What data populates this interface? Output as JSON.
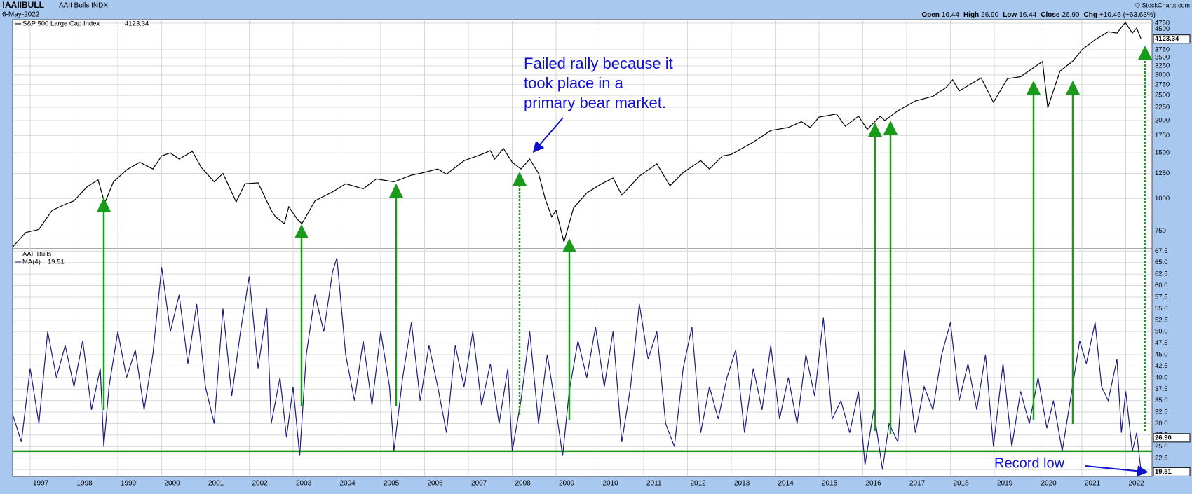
{
  "header": {
    "symbol": "!AAIIBULL",
    "name": "AAII Bulls INDX",
    "date": "6-May-2022",
    "credit": "© StockCharts.com",
    "quote": [
      {
        "label": "Open",
        "value": "16.44"
      },
      {
        "label": "High",
        "value": "26.90"
      },
      {
        "label": "Low",
        "value": "16.44"
      },
      {
        "label": "Close",
        "value": "26.90"
      },
      {
        "label": "Chg",
        "value": "+10.46 (+63.63%)"
      }
    ]
  },
  "chart_data": [
    {
      "type": "line",
      "log_scale": true,
      "grid": true,
      "series": [
        {
          "name": "S&P 500 Large Cap Index",
          "color": "#000000",
          "x": [
            1996.6,
            1996.9,
            1997.2,
            1997.5,
            1997.8,
            1998.0,
            1998.3,
            1998.55,
            1998.7,
            1998.9,
            1999.2,
            1999.5,
            1999.8,
            2000.0,
            2000.2,
            2000.4,
            2000.7,
            2000.9,
            2001.2,
            2001.4,
            2001.7,
            2001.9,
            2002.2,
            2002.5,
            2002.6,
            2002.8,
            2002.9,
            2003.1,
            2003.2,
            2003.5,
            2003.9,
            2004.2,
            2004.6,
            2004.9,
            2005.3,
            2005.7,
            2005.9,
            2006.3,
            2006.5,
            2006.9,
            2007.3,
            2007.5,
            2007.6,
            2007.8,
            2008.0,
            2008.2,
            2008.4,
            2008.6,
            2008.75,
            2008.9,
            2009.0,
            2009.18,
            2009.4,
            2009.7,
            2010.0,
            2010.3,
            2010.5,
            2010.9,
            2011.3,
            2011.6,
            2011.9,
            2012.3,
            2012.5,
            2012.8,
            2013.0,
            2013.5,
            2013.9,
            2014.3,
            2014.6,
            2014.8,
            2015.0,
            2015.4,
            2015.6,
            2015.9,
            2016.1,
            2016.4,
            2016.5,
            2016.8,
            2017.2,
            2017.6,
            2017.9,
            2018.05,
            2018.2,
            2018.7,
            2018.98,
            2019.3,
            2019.6,
            2019.9,
            2020.1,
            2020.22,
            2020.5,
            2020.8,
            2021.0,
            2021.3,
            2021.6,
            2021.8,
            2021.99,
            2022.15,
            2022.25,
            2022.35
          ],
          "values": [
            650,
            740,
            760,
            900,
            950,
            980,
            1110,
            1180,
            960,
            1160,
            1290,
            1380,
            1300,
            1460,
            1500,
            1420,
            1520,
            1320,
            1160,
            1250,
            970,
            1140,
            1150,
            900,
            850,
            800,
            930,
            830,
            800,
            980,
            1060,
            1140,
            1090,
            1190,
            1160,
            1230,
            1250,
            1300,
            1240,
            1400,
            1480,
            1530,
            1420,
            1560,
            1380,
            1300,
            1420,
            1250,
            1000,
            850,
            900,
            680,
            920,
            1050,
            1130,
            1200,
            1030,
            1220,
            1360,
            1120,
            1260,
            1400,
            1300,
            1460,
            1480,
            1650,
            1830,
            1880,
            1980,
            1880,
            2060,
            2120,
            1900,
            2080,
            1850,
            2080,
            2000,
            2180,
            2380,
            2480,
            2680,
            2870,
            2600,
            2920,
            2350,
            2900,
            2950,
            3200,
            3380,
            2240,
            3100,
            3400,
            3750,
            4100,
            4400,
            4350,
            4780,
            4350,
            4550,
            4123.34
          ]
        }
      ],
      "xlim": [
        1996.6,
        2022.6
      ],
      "ylim": [
        640,
        4900
      ],
      "yticks": [
        750,
        1000,
        1250,
        1500,
        1750,
        2000,
        2250,
        2500,
        2750,
        3000,
        3250,
        3500,
        3750,
        4500,
        4750
      ],
      "annotation": [
        "Failed rally because it",
        "took place in a",
        "primary bear market."
      ]
    },
    {
      "type": "line",
      "title": "AAII Bulls",
      "grid": true,
      "series": [
        {
          "name": "MA(4)",
          "color": "#1c1c80",
          "x": [
            1996.6,
            1996.8,
            1997.0,
            1997.2,
            1997.4,
            1997.6,
            1997.8,
            1998.0,
            1998.2,
            1998.4,
            1998.6,
            1998.68,
            1998.8,
            1999.0,
            1999.2,
            1999.4,
            1999.6,
            1999.8,
            2000.0,
            2000.2,
            2000.4,
            2000.6,
            2000.8,
            2001.0,
            2001.2,
            2001.4,
            2001.6,
            2001.8,
            2002.0,
            2002.2,
            2002.4,
            2002.5,
            2002.7,
            2002.85,
            2003.0,
            2003.15,
            2003.3,
            2003.5,
            2003.7,
            2003.9,
            2004.0,
            2004.2,
            2004.4,
            2004.6,
            2004.8,
            2005.0,
            2005.2,
            2005.3,
            2005.5,
            2005.7,
            2005.9,
            2006.1,
            2006.3,
            2006.5,
            2006.7,
            2006.9,
            2007.1,
            2007.3,
            2007.5,
            2007.7,
            2007.9,
            2008.0,
            2008.2,
            2008.4,
            2008.6,
            2008.8,
            2009.0,
            2009.15,
            2009.3,
            2009.5,
            2009.7,
            2009.9,
            2010.1,
            2010.3,
            2010.5,
            2010.7,
            2010.9,
            2011.1,
            2011.3,
            2011.5,
            2011.7,
            2011.9,
            2012.1,
            2012.3,
            2012.5,
            2012.7,
            2012.9,
            2013.1,
            2013.3,
            2013.5,
            2013.7,
            2013.9,
            2014.1,
            2014.3,
            2014.5,
            2014.7,
            2014.9,
            2015.1,
            2015.3,
            2015.5,
            2015.7,
            2015.9,
            2016.05,
            2016.25,
            2016.45,
            2016.6,
            2016.8,
            2016.95,
            2017.2,
            2017.4,
            2017.6,
            2017.8,
            2018.0,
            2018.2,
            2018.4,
            2018.6,
            2018.8,
            2018.98,
            2019.2,
            2019.4,
            2019.6,
            2019.8,
            2020.0,
            2020.2,
            2020.35,
            2020.55,
            2020.75,
            2020.95,
            2021.1,
            2021.3,
            2021.45,
            2021.6,
            2021.8,
            2021.9,
            2022.0,
            2022.15,
            2022.25,
            2022.35
          ],
          "values": [
            32,
            26,
            42,
            30,
            50,
            40,
            47,
            38,
            48,
            33,
            42,
            25,
            38,
            50,
            40,
            46,
            33,
            45,
            64,
            50,
            58,
            43,
            56,
            38,
            30,
            55,
            36,
            50,
            62,
            42,
            55,
            30,
            40,
            27,
            38,
            23,
            45,
            58,
            50,
            63,
            66,
            45,
            35,
            48,
            34,
            50,
            38,
            24,
            40,
            52,
            35,
            47,
            38,
            28,
            47,
            38,
            50,
            34,
            43,
            30,
            42,
            24,
            35,
            50,
            30,
            45,
            33,
            23,
            37,
            48,
            40,
            51,
            38,
            50,
            26,
            38,
            56,
            44,
            50,
            30,
            25,
            42,
            51,
            28,
            38,
            31,
            40,
            46,
            28,
            42,
            33,
            47,
            31,
            40,
            30,
            45,
            36,
            53,
            31,
            35,
            28,
            37,
            21,
            33,
            20,
            30,
            26,
            46,
            28,
            38,
            33,
            45,
            52,
            35,
            43,
            33,
            45,
            25,
            43,
            25,
            37,
            30,
            40,
            29,
            35,
            24,
            36,
            48,
            43,
            52,
            38,
            35,
            44,
            28,
            37,
            24,
            28,
            19.51
          ]
        }
      ],
      "close": {
        "value": 26.9,
        "label": "26.90"
      },
      "hline": {
        "value": 24,
        "color": "#1a9a1a"
      },
      "xlim": [
        1996.6,
        2022.6
      ],
      "ylim": [
        18.5,
        68
      ],
      "xticks": [
        1997,
        1998,
        1999,
        2000,
        2001,
        2002,
        2003,
        2004,
        2005,
        2006,
        2007,
        2008,
        2009,
        2010,
        2011,
        2012,
        2013,
        2014,
        2015,
        2016,
        2017,
        2018,
        2019,
        2020,
        2021,
        2022
      ],
      "yticks": [
        {
          "value": 20,
          "label": "20.0"
        },
        {
          "value": 22.5,
          "label": "22.5"
        },
        {
          "value": 25,
          "label": "25.0"
        },
        {
          "value": 27.5,
          "label": "27.5"
        },
        {
          "value": 30,
          "label": "30.0"
        },
        {
          "value": 32.5,
          "label": "32.5"
        },
        {
          "value": 35,
          "label": "35.0"
        },
        {
          "value": 37.5,
          "label": "37.5"
        },
        {
          "value": 40,
          "label": "40.0"
        },
        {
          "value": 42.5,
          "label": "42.5"
        },
        {
          "value": 45,
          "label": "45.0"
        },
        {
          "value": 47.5,
          "label": "47.5"
        },
        {
          "value": 50,
          "label": "50.0"
        },
        {
          "value": 52.5,
          "label": "52.5"
        },
        {
          "value": 55,
          "label": "55.0"
        },
        {
          "value": 57.5,
          "label": "57.5"
        },
        {
          "value": 60,
          "label": "60.0"
        },
        {
          "value": 62.5,
          "label": "62.5"
        },
        {
          "value": 65,
          "label": "65.0"
        },
        {
          "value": 67.5,
          "label": "67.5"
        }
      ],
      "annotation": "Record low"
    }
  ]
}
